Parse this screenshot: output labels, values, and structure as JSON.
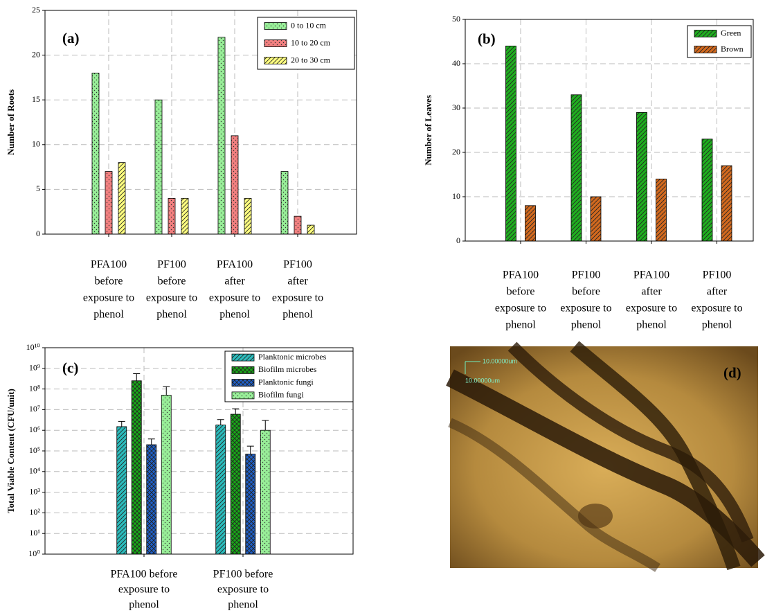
{
  "chart_data": [
    {
      "type": "bar",
      "title": "(a)",
      "y_label": "Number of Roots",
      "categories": [
        [
          "PFA100",
          "before",
          "exposure to",
          "phenol"
        ],
        [
          "PF100",
          "before",
          "exposure to",
          "phenol"
        ],
        [
          "PFA100",
          "after",
          "exposure to",
          "phenol"
        ],
        [
          "PF100",
          "after",
          "exposure to",
          "phenol"
        ]
      ],
      "series": [
        {
          "name": "0 to 10 cm",
          "color": "#98ee98",
          "values": [
            18,
            15,
            22,
            7
          ]
        },
        {
          "name": "10 to 20 cm",
          "color": "#f28080",
          "values": [
            7,
            4,
            11,
            2
          ]
        },
        {
          "name": "20 to 30 cm",
          "color": "#ffff80",
          "values": [
            8,
            4,
            4,
            1
          ]
        }
      ],
      "ylim": [
        0,
        25
      ],
      "yticks": [
        0,
        5,
        10,
        15,
        20,
        25
      ],
      "grid": true,
      "legend": "upper right"
    },
    {
      "type": "bar",
      "title": "(b)",
      "y_label": "Number of Leaves",
      "categories": [
        [
          "PFA100",
          "before",
          "exposure to",
          "phenol"
        ],
        [
          "PF100",
          "before",
          "exposure to",
          "phenol"
        ],
        [
          "PFA100",
          "after",
          "exposure to",
          "phenol"
        ],
        [
          "PF100",
          "after",
          "exposure to",
          "phenol"
        ]
      ],
      "series": [
        {
          "name": "Green",
          "color": "#1fae1f",
          "values": [
            44,
            33,
            29,
            23
          ]
        },
        {
          "name": "Brown",
          "color": "#d2691e",
          "values": [
            8,
            10,
            14,
            17
          ]
        }
      ],
      "ylim": [
        0,
        50
      ],
      "yticks": [
        0,
        10,
        20,
        30,
        40,
        50
      ],
      "grid": true,
      "legend": "upper right"
    },
    {
      "type": "bar",
      "title": "(c)",
      "y_label": "Total Viable Content (CFU/unit)",
      "categories": [
        [
          "PFA100 before",
          "exposure to",
          "phenol"
        ],
        [
          "PF100 before",
          "exposure to",
          "phenol"
        ]
      ],
      "series": [
        {
          "name": "Planktonic microbes",
          "color": "#2cbcbc",
          "values": [
            1500000,
            1800000
          ],
          "errors": [
            1200000,
            1500000
          ]
        },
        {
          "name": "Biofilm microbes",
          "color": "#18a818",
          "values": [
            250000000,
            6000000
          ],
          "errors": [
            300000000,
            5000000
          ]
        },
        {
          "name": "Planktonic fungi",
          "color": "#2060c8",
          "values": [
            200000,
            70000
          ],
          "errors": [
            180000,
            100000
          ]
        },
        {
          "name": "Biofilm fungi",
          "color": "#98ee98",
          "values": [
            50000000,
            1000000
          ],
          "errors": [
            80000000,
            2000000
          ]
        }
      ],
      "log_scale": true,
      "ylim": [
        1,
        10000000000
      ],
      "yticks": [
        {
          "value": 1,
          "label": "10⁰"
        },
        {
          "value": 10,
          "label": "10¹"
        },
        {
          "value": 100,
          "label": "10²"
        },
        {
          "value": 1000,
          "label": "10³"
        },
        {
          "value": 10000,
          "label": "10⁴"
        },
        {
          "value": 100000,
          "label": "10⁵"
        },
        {
          "value": 1000000,
          "label": "10⁶"
        },
        {
          "value": 10000000,
          "label": "10⁷"
        },
        {
          "value": 100000000,
          "label": "10⁸"
        },
        {
          "value": 1000000000,
          "label": "10⁹"
        },
        {
          "value": 10000000000,
          "label": "10¹⁰"
        }
      ],
      "grid": true,
      "legend": "upper right"
    }
  ],
  "image_panel": {
    "label": "(d)",
    "scale_labels": [
      "10.00000um",
      "10.00000um"
    ]
  }
}
